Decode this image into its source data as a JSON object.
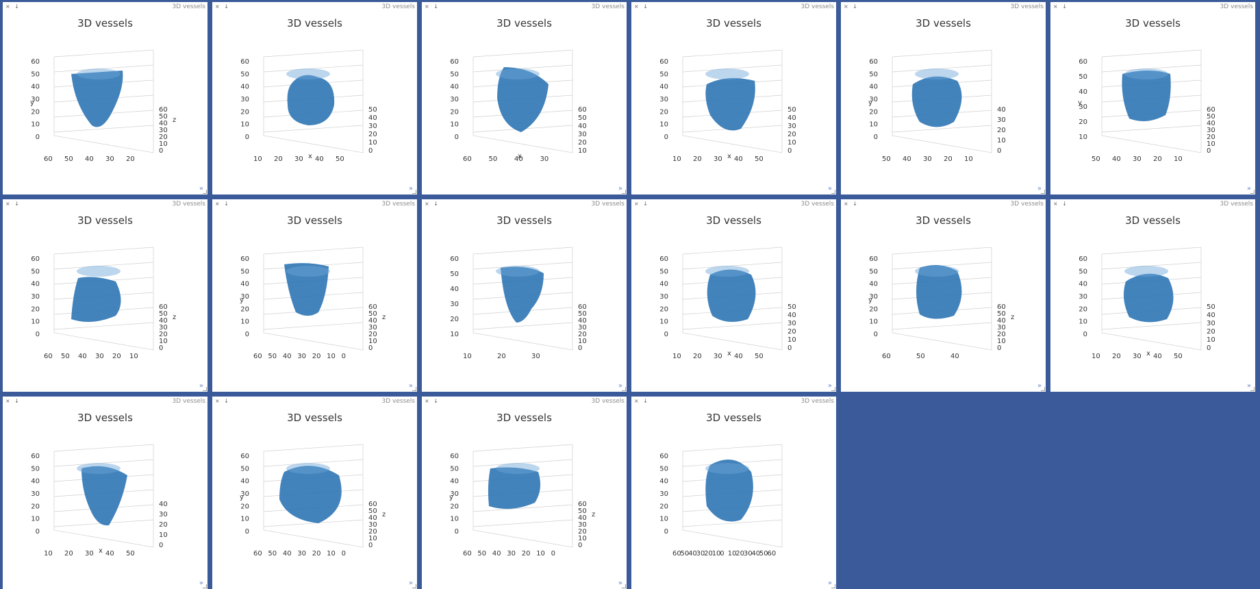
{
  "colors": {
    "background": "#3a5a99",
    "panel": "#ffffff",
    "vessel_fill": "#2f75b5",
    "vessel_light": "#6aa3d8",
    "grid": "#cfcfcf"
  },
  "panel_controls": {
    "close_glyph": "×",
    "pin_glyph": "↓",
    "tag": "3D vessels",
    "expand_glyph": "»"
  },
  "panels": [
    {
      "title": "3D vessels",
      "axes": {
        "y_ticks": [
          "0",
          "10",
          "20",
          "30",
          "40",
          "50",
          "60"
        ],
        "x_ticks": [
          "60",
          "50",
          "40",
          "30",
          "20"
        ],
        "z_ticks": [
          "0",
          "10",
          "20",
          "30",
          "40",
          "50",
          "60"
        ],
        "y_label": "y",
        "z_label": "z"
      }
    },
    {
      "title": "3D vessels",
      "axes": {
        "y_ticks": [
          "0",
          "10",
          "20",
          "30",
          "40",
          "50",
          "60"
        ],
        "x_ticks": [
          "10",
          "20",
          "30",
          "40",
          "50"
        ],
        "z_ticks": [
          "0",
          "10",
          "20",
          "30",
          "40",
          "50"
        ],
        "x_label": "x"
      }
    },
    {
      "title": "3D vessels",
      "axes": {
        "y_ticks": [
          "0",
          "10",
          "20",
          "30",
          "40",
          "50",
          "60"
        ],
        "x_ticks": [
          "60",
          "50",
          "40",
          "30"
        ],
        "z_ticks": [
          "10",
          "20",
          "30",
          "40",
          "50",
          "60"
        ],
        "x_label": "x"
      }
    },
    {
      "title": "3D vessels",
      "axes": {
        "y_ticks": [
          "0",
          "10",
          "20",
          "30",
          "40",
          "50",
          "60"
        ],
        "x_ticks": [
          "10",
          "20",
          "30",
          "40",
          "50"
        ],
        "z_ticks": [
          "0",
          "10",
          "20",
          "30",
          "40",
          "50"
        ],
        "x_label": "x"
      }
    },
    {
      "title": "3D vessels",
      "axes": {
        "y_ticks": [
          "0",
          "10",
          "20",
          "30",
          "40",
          "50",
          "60"
        ],
        "x_ticks": [
          "50",
          "40",
          "30",
          "20",
          "10"
        ],
        "z_ticks": [
          "0",
          "10",
          "20",
          "30",
          "40"
        ],
        "y_label": "y"
      }
    },
    {
      "title": "3D vessels",
      "axes": {
        "y_ticks": [
          "10",
          "20",
          "30",
          "40",
          "50",
          "60"
        ],
        "x_ticks": [
          "50",
          "40",
          "30",
          "20",
          "10"
        ],
        "z_ticks": [
          "0",
          "10",
          "20",
          "30",
          "40",
          "50",
          "60"
        ],
        "y_label": "y"
      }
    },
    {
      "title": "3D vessels",
      "axes": {
        "y_ticks": [
          "0",
          "10",
          "20",
          "30",
          "40",
          "50",
          "60"
        ],
        "x_ticks": [
          "60",
          "50",
          "40",
          "30",
          "20",
          "10"
        ],
        "z_ticks": [
          "0",
          "10",
          "20",
          "30",
          "40",
          "50",
          "60"
        ],
        "z_label": "z"
      }
    },
    {
      "title": "3D vessels",
      "axes": {
        "y_ticks": [
          "0",
          "10",
          "20",
          "30",
          "40",
          "50",
          "60"
        ],
        "x_ticks": [
          "60",
          "50",
          "40",
          "30",
          "20",
          "10",
          "0"
        ],
        "z_ticks": [
          "0",
          "10",
          "20",
          "30",
          "40",
          "50",
          "60"
        ],
        "y_label": "y",
        "z_label": "z"
      }
    },
    {
      "title": "3D vessels",
      "axes": {
        "y_ticks": [
          "10",
          "20",
          "30",
          "40",
          "50",
          "60"
        ],
        "x_ticks": [
          "10",
          "20",
          "30"
        ],
        "z_ticks": [
          "0",
          "10",
          "20",
          "30",
          "40",
          "50",
          "60"
        ]
      }
    },
    {
      "title": "3D vessels",
      "axes": {
        "y_ticks": [
          "0",
          "10",
          "20",
          "30",
          "40",
          "50",
          "60"
        ],
        "x_ticks": [
          "10",
          "20",
          "30",
          "40",
          "50"
        ],
        "z_ticks": [
          "0",
          "10",
          "20",
          "30",
          "40",
          "50"
        ],
        "x_label": "x"
      }
    },
    {
      "title": "3D vessels",
      "axes": {
        "y_ticks": [
          "0",
          "10",
          "20",
          "30",
          "40",
          "50",
          "60"
        ],
        "x_ticks": [
          "60",
          "50",
          "40"
        ],
        "z_ticks": [
          "0",
          "10",
          "20",
          "30",
          "40",
          "50",
          "60"
        ],
        "y_label": "y",
        "z_label": "z"
      }
    },
    {
      "title": "3D vessels",
      "axes": {
        "y_ticks": [
          "0",
          "10",
          "20",
          "30",
          "40",
          "50",
          "60"
        ],
        "x_ticks": [
          "10",
          "20",
          "30",
          "40",
          "50"
        ],
        "z_ticks": [
          "0",
          "10",
          "20",
          "30",
          "40",
          "50"
        ],
        "x_label": "x"
      }
    },
    {
      "title": "3D vessels",
      "axes": {
        "y_ticks": [
          "0",
          "10",
          "20",
          "30",
          "40",
          "50",
          "60"
        ],
        "x_ticks": [
          "10",
          "20",
          "30",
          "40",
          "50"
        ],
        "z_ticks": [
          "0",
          "10",
          "20",
          "30",
          "40"
        ],
        "x_label": "x"
      }
    },
    {
      "title": "3D vessels",
      "axes": {
        "y_ticks": [
          "0",
          "10",
          "20",
          "30",
          "40",
          "50",
          "60"
        ],
        "x_ticks": [
          "60",
          "50",
          "40",
          "30",
          "20",
          "10",
          "0"
        ],
        "z_ticks": [
          "0",
          "10",
          "20",
          "30",
          "40",
          "50",
          "60"
        ],
        "y_label": "y",
        "z_label": "z"
      }
    },
    {
      "title": "3D vessels",
      "axes": {
        "y_ticks": [
          "0",
          "10",
          "20",
          "30",
          "40",
          "50",
          "60"
        ],
        "x_ticks": [
          "60",
          "50",
          "40",
          "30",
          "20",
          "10",
          "0"
        ],
        "z_ticks": [
          "0",
          "10",
          "20",
          "30",
          "40",
          "50",
          "60"
        ],
        "y_label": "y",
        "z_label": "z"
      }
    },
    {
      "title": "3D vessels",
      "axes": {
        "y_ticks": [
          "0",
          "10",
          "20",
          "30",
          "40",
          "50",
          "60"
        ],
        "x_ticks": [
          "60",
          "50",
          "40",
          "30",
          "20",
          "10",
          "0",
          "10",
          "20",
          "30",
          "40",
          "50",
          "60"
        ],
        "z_ticks": []
      }
    }
  ]
}
